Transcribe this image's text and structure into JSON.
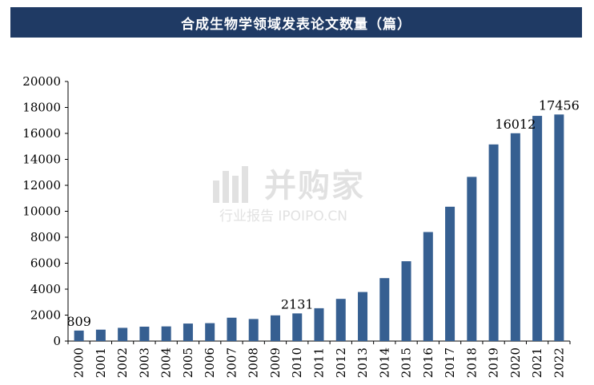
{
  "chart_data": {
    "type": "bar",
    "title": "合成生物学领域发表论文数量（篇）",
    "categories": [
      "2000",
      "2001",
      "2002",
      "2003",
      "2004",
      "2005",
      "2006",
      "2007",
      "2008",
      "2009",
      "2010",
      "2011",
      "2012",
      "2013",
      "2014",
      "2015",
      "2016",
      "2017",
      "2018",
      "2019",
      "2020",
      "2021",
      "2022"
    ],
    "values": [
      809,
      880,
      1020,
      1110,
      1130,
      1350,
      1380,
      1800,
      1700,
      1980,
      2131,
      2530,
      3250,
      3780,
      4850,
      6150,
      8400,
      10350,
      12650,
      15150,
      16012,
      17350,
      17456
    ],
    "data_labels": [
      {
        "index": 0,
        "text": "809"
      },
      {
        "index": 10,
        "text": "2131"
      },
      {
        "index": 20,
        "text": "16012"
      },
      {
        "index": 22,
        "text": "17456"
      }
    ],
    "ylim": [
      0,
      20000
    ],
    "yticks": [
      0,
      2000,
      4000,
      6000,
      8000,
      10000,
      12000,
      14000,
      16000,
      18000,
      20000
    ],
    "bar_color": "#365f91",
    "grid": false,
    "xlabel": "",
    "ylabel": ""
  },
  "watermark": {
    "main": "并购家",
    "sub": "行业报告 IPOIPO.CN"
  }
}
